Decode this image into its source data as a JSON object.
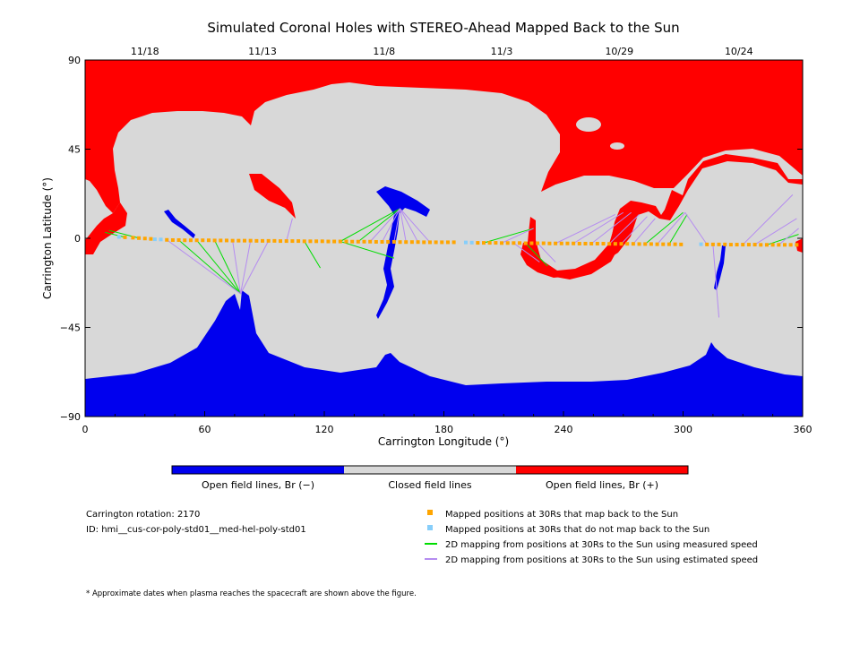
{
  "chart_data": {
    "type": "heatmap",
    "title": "Simulated Coronal Holes with STEREO-Ahead Mapped Back to the Sun",
    "xlabel": "Carrington Longitude (°)",
    "ylabel": "Carrington Latitude (°)",
    "xlim": [
      0,
      360
    ],
    "ylim": [
      -90,
      90
    ],
    "x_ticks": [
      0,
      60,
      120,
      180,
      240,
      300,
      360
    ],
    "y_ticks": [
      90,
      45,
      0,
      -45,
      -90
    ],
    "top_axis": {
      "dates": [
        {
          "label": "11/18",
          "lon": 30
        },
        {
          "label": "11/13",
          "lon": 89
        },
        {
          "label": "11/8",
          "lon": 150
        },
        {
          "label": "11/3",
          "lon": 209
        },
        {
          "label": "10/29",
          "lon": 268
        },
        {
          "label": "10/24",
          "lon": 328
        }
      ]
    },
    "colorbar": [
      {
        "label": "Open field lines, Br (−)",
        "color": "#0000ee"
      },
      {
        "label": "Closed field lines",
        "color": "#d8d8d8"
      },
      {
        "label": "Open field lines, Br (+)",
        "color": "#ff0000"
      }
    ],
    "mapped_positions_30Rs": {
      "lon": [
        20,
        24,
        27,
        30,
        33,
        41,
        44,
        47,
        50,
        53,
        56,
        59,
        62,
        65,
        68,
        71,
        74,
        77,
        80,
        83,
        86,
        89,
        92,
        95,
        98,
        101,
        104,
        107,
        110,
        113,
        116,
        119,
        122,
        125,
        128,
        131,
        134,
        137,
        140,
        143,
        146,
        149,
        152,
        155,
        158,
        161,
        164,
        167,
        170,
        173,
        176,
        179,
        182,
        185,
        197,
        200,
        203,
        206,
        209,
        212,
        215,
        218,
        221,
        224,
        227,
        230,
        233,
        236,
        239,
        242,
        245,
        248,
        251,
        254,
        257,
        260,
        263,
        266,
        269,
        272,
        275,
        278,
        281,
        284,
        287,
        290,
        293,
        296,
        299,
        312,
        315,
        318,
        321,
        324,
        327,
        330,
        333,
        336,
        339,
        342,
        345,
        348,
        351,
        354,
        357
      ],
      "lat": [
        0.5,
        0.3,
        0.1,
        -0.1,
        -0.3,
        -0.8,
        -0.9,
        -0.9,
        -1,
        -1,
        -1,
        -1,
        -1,
        -1.1,
        -1.1,
        -1.1,
        -1.2,
        -1.2,
        -1.2,
        -1.2,
        -1.3,
        -1.3,
        -1.3,
        -1.3,
        -1.4,
        -1.4,
        -1.4,
        -1.4,
        -1.5,
        -1.5,
        -1.5,
        -1.5,
        -1.6,
        -1.6,
        -1.6,
        -1.6,
        -1.7,
        -1.7,
        -1.7,
        -1.7,
        -1.8,
        -1.8,
        -1.8,
        -1.8,
        -1.9,
        -1.9,
        -1.9,
        -1.9,
        -2,
        -2,
        -2,
        -2,
        -2,
        -2,
        -2.3,
        -2.3,
        -2.3,
        -2.3,
        -2.4,
        -2.4,
        -2.4,
        -2.4,
        -2.5,
        -2.5,
        -2.5,
        -2.5,
        -2.6,
        -2.6,
        -2.6,
        -2.6,
        -2.6,
        -2.7,
        -2.7,
        -2.7,
        -2.7,
        -2.7,
        -2.8,
        -2.8,
        -2.8,
        -2.8,
        -2.8,
        -2.9,
        -2.9,
        -2.9,
        -3,
        -3,
        -3,
        -3,
        -3.1,
        -3.1,
        -3.1,
        -3.1,
        -3.1,
        -3.2,
        -3.2,
        -3.2,
        -3.2,
        -3.2,
        -3.3,
        -3.3,
        -3.3,
        -3.3,
        -3.3,
        -3.3,
        -3.3
      ]
    },
    "unmapped_positions_30Rs": {
      "lon": [
        17,
        35,
        38,
        191,
        194,
        309
      ],
      "lat": [
        0.7,
        -0.5,
        -0.6,
        -2.1,
        -2.2,
        -3.0
      ]
    },
    "mapping_lines": [
      {
        "from_lon": 20,
        "to_lon": 10,
        "to_lat": 3,
        "kind": "measured"
      },
      {
        "from_lon": 27,
        "to_lon": 12,
        "to_lat": 4,
        "kind": "measured"
      },
      {
        "from_lon": 47,
        "to_lon": 78,
        "to_lat": -28,
        "kind": "measured"
      },
      {
        "from_lon": 56,
        "to_lon": 78,
        "to_lat": -28,
        "kind": "measured"
      },
      {
        "from_lon": 65,
        "to_lon": 78,
        "to_lat": -28,
        "kind": "measured"
      },
      {
        "from_lon": 74,
        "to_lon": 78,
        "to_lat": -28,
        "kind": "estimated"
      },
      {
        "from_lon": 83,
        "to_lon": 78,
        "to_lat": -28,
        "kind": "estimated"
      },
      {
        "from_lon": 92,
        "to_lon": 78,
        "to_lat": -28,
        "kind": "estimated"
      },
      {
        "from_lon": 41,
        "to_lon": 78,
        "to_lat": -28,
        "kind": "estimated"
      },
      {
        "from_lon": 101,
        "to_lon": 104,
        "to_lat": 10,
        "kind": "estimated"
      },
      {
        "from_lon": 110,
        "to_lon": 118,
        "to_lat": -15,
        "kind": "measured"
      },
      {
        "from_lon": 128,
        "to_lon": 158,
        "to_lat": 15,
        "kind": "measured"
      },
      {
        "from_lon": 137,
        "to_lon": 158,
        "to_lat": 15,
        "kind": "measured"
      },
      {
        "from_lon": 143,
        "to_lon": 158,
        "to_lat": 15,
        "kind": "estimated"
      },
      {
        "from_lon": 149,
        "to_lon": 158,
        "to_lat": 15,
        "kind": "estimated"
      },
      {
        "from_lon": 155,
        "to_lon": 158,
        "to_lat": 15,
        "kind": "estimated"
      },
      {
        "from_lon": 161,
        "to_lon": 158,
        "to_lat": 15,
        "kind": "estimated"
      },
      {
        "from_lon": 167,
        "to_lon": 158,
        "to_lat": 15,
        "kind": "estimated"
      },
      {
        "from_lon": 173,
        "to_lon": 158,
        "to_lat": 15,
        "kind": "estimated"
      },
      {
        "from_lon": 128,
        "to_lon": 155,
        "to_lat": -10,
        "kind": "measured"
      },
      {
        "from_lon": 200,
        "to_lon": 225,
        "to_lat": 5,
        "kind": "measured"
      },
      {
        "from_lon": 209,
        "to_lon": 225,
        "to_lat": 5,
        "kind": "estimated"
      },
      {
        "from_lon": 215,
        "to_lon": 228,
        "to_lat": -12,
        "kind": "estimated"
      },
      {
        "from_lon": 221,
        "to_lon": 232,
        "to_lat": -14,
        "kind": "measured"
      },
      {
        "from_lon": 227,
        "to_lon": 236,
        "to_lat": -12,
        "kind": "estimated"
      },
      {
        "from_lon": 236,
        "to_lon": 266,
        "to_lat": 12,
        "kind": "estimated"
      },
      {
        "from_lon": 245,
        "to_lon": 270,
        "to_lat": 13,
        "kind": "estimated"
      },
      {
        "from_lon": 254,
        "to_lon": 274,
        "to_lat": 13,
        "kind": "estimated"
      },
      {
        "from_lon": 263,
        "to_lon": 278,
        "to_lat": 12,
        "kind": "estimated"
      },
      {
        "from_lon": 269,
        "to_lon": 282,
        "to_lat": 11,
        "kind": "estimated"
      },
      {
        "from_lon": 275,
        "to_lon": 286,
        "to_lat": 10,
        "kind": "estimated"
      },
      {
        "from_lon": 281,
        "to_lon": 300,
        "to_lat": 13,
        "kind": "measured"
      },
      {
        "from_lon": 287,
        "to_lon": 301,
        "to_lat": 13,
        "kind": "estimated"
      },
      {
        "from_lon": 293,
        "to_lon": 302,
        "to_lat": 12,
        "kind": "measured"
      },
      {
        "from_lon": 312,
        "to_lon": 301,
        "to_lat": 13,
        "kind": "estimated"
      },
      {
        "from_lon": 315,
        "to_lon": 318,
        "to_lat": -40,
        "kind": "estimated"
      },
      {
        "from_lon": 330,
        "to_lon": 355,
        "to_lat": 22,
        "kind": "estimated"
      },
      {
        "from_lon": 336,
        "to_lon": 357,
        "to_lat": 10,
        "kind": "estimated"
      },
      {
        "from_lon": 342,
        "to_lon": 358,
        "to_lat": 2,
        "kind": "measured"
      },
      {
        "from_lon": 348,
        "to_lon": 358,
        "to_lat": 5,
        "kind": "estimated"
      }
    ]
  },
  "info": {
    "rotation": "Carrington rotation: 2170",
    "id": "ID: hmi__cus-cor-poly-std01__med-hel-poly-std01"
  },
  "legend": {
    "orange": "Mapped positions at 30Rs that map back to the Sun",
    "blue": "Mapped positions at 30Rs that do not map back to the Sun",
    "green": "2D mapping from positions at 30Rs to the Sun using measured speed",
    "purple": "2D mapping from positions at 30Rs to the Sun using estimated speed"
  },
  "footnote": "* Approximate dates when plasma reaches the spacecraft are shown above the figure.",
  "colors": {
    "open_negative": "#0000ee",
    "closed": "#d8d8d8",
    "open_positive": "#ff0000",
    "mapped": "#ffa500",
    "unmapped": "#87cefa",
    "measured": "#00dd00",
    "estimated": "#b58cf0"
  }
}
